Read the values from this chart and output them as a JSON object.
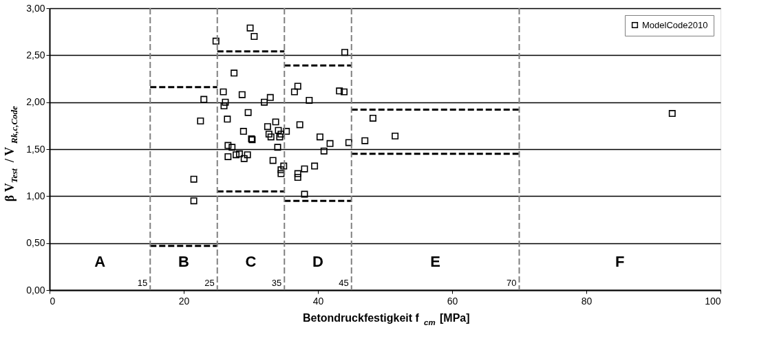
{
  "chart_data": {
    "type": "scatter",
    "xlabel": "Betondruckfestigkeit f$_{cm}$ [MPa]",
    "ylabel": "β V$_{Test}$/ V$_{Rk,c,Code}$",
    "xlim": [
      0,
      100
    ],
    "xticks": [
      0,
      20,
      40,
      60,
      80,
      100
    ],
    "ylim": [
      0,
      3
    ],
    "yticks": [
      {
        "value": 0,
        "label": "0,00"
      },
      {
        "value": 0.5,
        "label": "0,50"
      },
      {
        "value": 1,
        "label": "1,00"
      },
      {
        "value": 1.5,
        "label": "1,50"
      },
      {
        "value": 2,
        "label": "2,00"
      },
      {
        "value": 2.5,
        "label": "2,50"
      },
      {
        "value": 3,
        "label": "3,00"
      }
    ],
    "grid": "y",
    "legend": "top right",
    "marker": "square",
    "series": [
      {
        "name": "ModelCode2010",
        "color": "#000000",
        "x": [
          21.5,
          21.5,
          22.5,
          23.0,
          24.8,
          25.9,
          26.0,
          26.2,
          26.5,
          26.6,
          26.6,
          27.2,
          27.5,
          27.8,
          28.3,
          28.7,
          28.9,
          29.0,
          29.5,
          29.6,
          30.1,
          30.2,
          29.9,
          30.5,
          32.0,
          32.5,
          32.7,
          32.9,
          33.0,
          33.3,
          33.7,
          34.0,
          34.1,
          34.3,
          34.5,
          34.5,
          34.5,
          34.9,
          35.3,
          36.5,
          37.0,
          37.0,
          37.0,
          37.3,
          38.0,
          38.0,
          38.7,
          39.5,
          40.3,
          40.9,
          41.8,
          43.2,
          43.9,
          44.0,
          44.6,
          47.0,
          48.2,
          51.5,
          92.8
        ],
        "values": [
          1.18,
          0.95,
          1.8,
          2.03,
          2.65,
          2.11,
          1.96,
          2.0,
          1.82,
          1.54,
          1.42,
          1.52,
          2.31,
          1.44,
          1.45,
          2.08,
          1.69,
          1.4,
          1.44,
          1.89,
          1.61,
          1.6,
          2.79,
          2.7,
          2.0,
          1.74,
          1.66,
          2.05,
          1.63,
          1.38,
          1.79,
          1.52,
          1.7,
          1.63,
          1.66,
          1.28,
          1.24,
          1.32,
          1.69,
          2.11,
          2.17,
          1.24,
          1.2,
          1.76,
          1.02,
          1.29,
          2.02,
          1.32,
          1.63,
          1.48,
          1.56,
          2.12,
          2.11,
          2.53,
          1.57,
          1.59,
          1.83,
          1.64,
          1.88
        ]
      },
      {
        "type": "line",
        "color": "#000000",
        "line_style": "dashed",
        "marker": "none",
        "x": [
          15,
          25
        ],
        "values": [
          2.16,
          2.16
        ]
      },
      {
        "type": "line",
        "color": "#000000",
        "line_style": "dashed",
        "marker": "none",
        "x": [
          15,
          25
        ],
        "values": [
          0.47,
          0.47
        ]
      },
      {
        "type": "line",
        "color": "#000000",
        "line_style": "dashed",
        "marker": "none",
        "x": [
          25,
          35
        ],
        "values": [
          2.54,
          2.54
        ]
      },
      {
        "type": "line",
        "color": "#000000",
        "line_style": "dashed",
        "marker": "none",
        "x": [
          25,
          35
        ],
        "values": [
          1.05,
          1.05
        ]
      },
      {
        "type": "line",
        "color": "#000000",
        "line_style": "dashed",
        "marker": "none",
        "x": [
          35,
          45
        ],
        "values": [
          2.39,
          2.39
        ]
      },
      {
        "type": "line",
        "color": "#000000",
        "line_style": "dashed",
        "marker": "none",
        "x": [
          35,
          45
        ],
        "values": [
          0.95,
          0.95
        ]
      },
      {
        "type": "line",
        "color": "#000000",
        "line_style": "dashed",
        "marker": "none",
        "x": [
          45,
          70
        ],
        "values": [
          1.92,
          1.92
        ]
      },
      {
        "type": "line",
        "color": "#000000",
        "line_style": "dashed",
        "marker": "none",
        "x": [
          45,
          70
        ],
        "values": [
          1.45,
          1.45
        ]
      }
    ],
    "ref_lines": [
      {
        "axis": "x",
        "value": 15,
        "label": "15",
        "color": "#808080",
        "line_style": "dashed"
      },
      {
        "axis": "x",
        "value": 25,
        "label": "25",
        "color": "#808080",
        "line_style": "dashed"
      },
      {
        "axis": "x",
        "value": 35,
        "label": "35",
        "color": "#808080",
        "line_style": "dashed"
      },
      {
        "axis": "x",
        "value": 45,
        "label": "45",
        "color": "#808080",
        "line_style": "dashed"
      },
      {
        "axis": "x",
        "value": 70,
        "label": "70",
        "color": "#808080",
        "line_style": "dashed"
      }
    ],
    "annotations": [
      "A",
      "B",
      "C",
      "D",
      "E",
      "F"
    ]
  }
}
